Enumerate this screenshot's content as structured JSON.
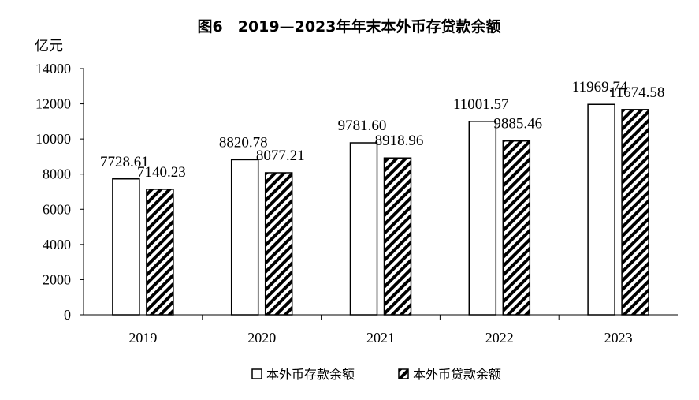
{
  "chart_data": {
    "type": "bar",
    "title": "图6　2019—2023年年末本外币存贷款余额",
    "ylabel": "亿元",
    "xlabel": "",
    "categories": [
      "2019",
      "2020",
      "2021",
      "2022",
      "2023"
    ],
    "ylim": [
      0,
      14000
    ],
    "yticks": [
      0,
      2000,
      4000,
      6000,
      8000,
      10000,
      12000,
      14000
    ],
    "grid": false,
    "legend_position": "bottom",
    "series": [
      {
        "name": "本外币存款余额",
        "values": [
          7728.61,
          8820.78,
          9781.6,
          11001.57,
          11969.74
        ],
        "labels": [
          "7728.61",
          "8820.78",
          "9781.60",
          "11001.57",
          "11969.74"
        ],
        "fill": "solid-white"
      },
      {
        "name": "本外币贷款余额",
        "values": [
          7140.23,
          8077.21,
          8918.96,
          9885.46,
          11674.58
        ],
        "labels": [
          "7140.23",
          "8077.21",
          "8918.96",
          "9885.46",
          "11674.58"
        ],
        "fill": "diagonal-hatch"
      }
    ],
    "colors": {
      "bar_stroke": "#000000",
      "bar_fill": "#ffffff",
      "hatch": "#000000"
    }
  }
}
